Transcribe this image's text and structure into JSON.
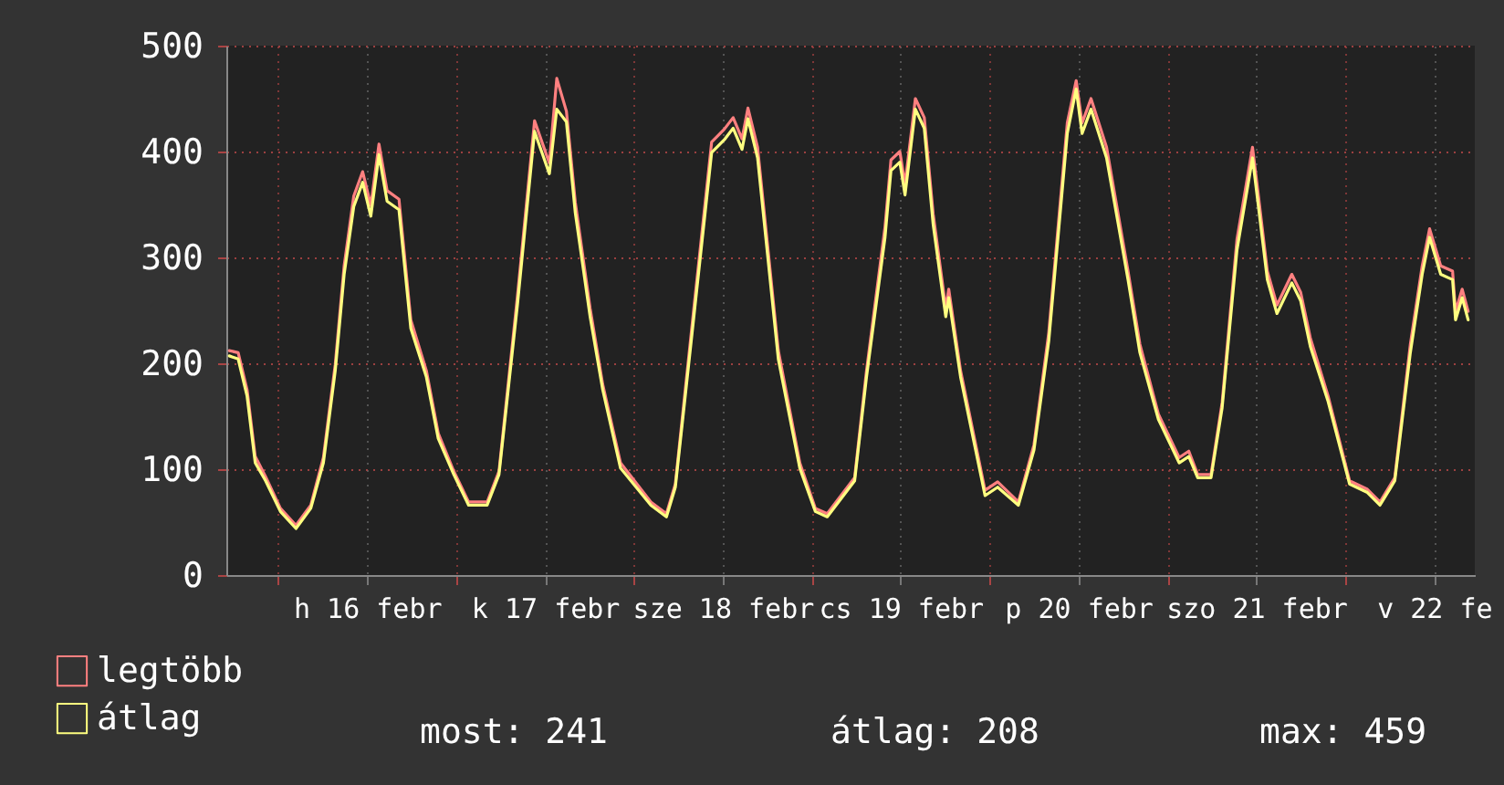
{
  "chart_data": {
    "type": "line",
    "x": [
      "--02-15T17:24",
      "--02-15T18:36",
      "--02-15T19:48",
      "--02-15T20:54",
      "--02-15T22:18",
      "--02-16T00:18",
      "--02-16T02:24",
      "--02-16T04:24",
      "--02-16T06:06",
      "--02-16T07:42",
      "--02-16T08:54",
      "--02-16T10:12",
      "--02-16T11:24",
      "--02-16T12:30",
      "--02-16T13:36",
      "--02-16T14:42",
      "--02-16T16:18",
      "--02-16T17:54",
      "--02-16T20:00",
      "--02-16T21:36",
      "--02-16T23:42",
      "--02-17T01:42",
      "--02-17T04:12",
      "--02-17T05:48",
      "--02-17T08:18",
      "--02-17T10:36",
      "--02-17T11:36",
      "--02-17T12:36",
      "--02-17T13:36",
      "--02-17T14:54",
      "--02-17T16:06",
      "--02-17T18:06",
      "--02-17T19:48",
      "--02-17T22:12",
      "--02-18T02:18",
      "--02-18T04:24",
      "--02-18T05:36",
      "--02-18T08:06",
      "--02-18T10:30",
      "--02-18T12:12",
      "--02-18T13:24",
      "--02-18T14:36",
      "--02-18T15:24",
      "--02-18T16:42",
      "--02-18T19:30",
      "--02-18T22:24",
      "--02-19T00:30",
      "--02-19T02:06",
      "--02-19T05:48",
      "--02-19T07:24",
      "--02-19T09:54",
      "--02-19T10:42",
      "--02-19T11:54",
      "--02-19T12:36",
      "--02-19T14:00",
      "--02-19T15:12",
      "--02-19T16:24",
      "--02-19T18:06",
      "--02-19T18:30",
      "--02-19T20:06",
      "--02-19T23:24",
      "--02-20T01:06",
      "--02-20T03:54",
      "--02-20T06:00",
      "--02-20T08:00",
      "--02-20T10:30",
      "--02-20T11:42",
      "--02-20T12:30",
      "--02-20T13:42",
      "--02-20T15:48",
      "--02-20T18:42",
      "--02-20T20:18",
      "--02-20T22:48",
      "--02-21T01:36",
      "--02-21T02:54",
      "--02-21T04:06",
      "--02-21T05:54",
      "--02-21T07:24",
      "--02-21T09:24",
      "--02-21T11:30",
      "--02-21T12:18",
      "--02-21T13:30",
      "--02-21T14:48",
      "--02-21T16:48",
      "--02-21T18:00",
      "--02-21T19:18",
      "--02-21T21:42",
      "--02-22T00:36",
      "--02-22T03:00",
      "--02-22T04:42",
      "--02-22T06:42",
      "--02-22T08:48",
      "--02-22T10:24",
      "--02-22T11:24",
      "--02-22T12:54",
      "--02-22T14:30",
      "--02-22T14:54",
      "--02-22T15:48",
      "--02-22T16:36"
    ],
    "series": [
      {
        "name": "legtöbb",
        "color": "#ff8080",
        "values": [
          212,
          210,
          175,
          112,
          93,
          63,
          47,
          66,
          111,
          199,
          292,
          358,
          381,
          349,
          407,
          363,
          355,
          241,
          193,
          134,
          98,
          69,
          69,
          98,
          264,
          429,
          409,
          389,
          469,
          438,
          352,
          252,
          180,
          106,
          69,
          58,
          86,
          252,
          409,
          421,
          432,
          412,
          441,
          404,
          212,
          106,
          63,
          58,
          92,
          193,
          329,
          392,
          400,
          369,
          450,
          432,
          341,
          252,
          270,
          193,
          80,
          88,
          69,
          123,
          229,
          427,
          467,
          427,
          450,
          404,
          287,
          218,
          152,
          111,
          117,
          95,
          95,
          163,
          317,
          404,
          358,
          287,
          255,
          284,
          267,
          224,
          169,
          89,
          81,
          69,
          92,
          218,
          292,
          327,
          292,
          287,
          249,
          270,
          249
        ]
      },
      {
        "name": "átlag",
        "color": "#ffff80",
        "values": [
          207,
          204,
          169,
          106,
          89,
          60,
          44,
          63,
          106,
          193,
          284,
          348,
          371,
          339,
          397,
          353,
          345,
          233,
          187,
          129,
          95,
          66,
          66,
          95,
          256,
          419,
          399,
          379,
          440,
          428,
          342,
          244,
          175,
          101,
          66,
          55,
          83,
          244,
          399,
          411,
          422,
          402,
          431,
          394,
          204,
          101,
          60,
          55,
          89,
          187,
          319,
          382,
          390,
          359,
          440,
          422,
          331,
          244,
          262,
          187,
          75,
          83,
          66,
          118,
          221,
          417,
          459,
          417,
          440,
          394,
          279,
          210,
          147,
          106,
          112,
          92,
          92,
          158,
          307,
          394,
          348,
          279,
          247,
          276,
          259,
          216,
          164,
          86,
          78,
          66,
          89,
          210,
          284,
          319,
          284,
          279,
          241,
          262,
          241
        ]
      }
    ],
    "xlim": [
      "--02-15T17:00",
      "--02-22T17:30"
    ],
    "xticks": [
      {
        "value": "--02-16T00:00",
        "label": null
      },
      {
        "value": "--02-16T12:00",
        "label": "h 16 febr"
      },
      {
        "value": "--02-17T00:00",
        "label": null
      },
      {
        "value": "--02-17T12:00",
        "label": "k 17 febr"
      },
      {
        "value": "--02-18T00:00",
        "label": null
      },
      {
        "value": "--02-18T12:00",
        "label": "sze 18 febr"
      },
      {
        "value": "--02-19T00:00",
        "label": null
      },
      {
        "value": "--02-19T12:00",
        "label": "cs 19 febr"
      },
      {
        "value": "--02-20T00:00",
        "label": null
      },
      {
        "value": "--02-20T12:00",
        "label": "p 20 febr"
      },
      {
        "value": "--02-21T00:00",
        "label": null
      },
      {
        "value": "--02-21T12:00",
        "label": "szo 21 febr"
      },
      {
        "value": "--02-22T00:00",
        "label": null
      },
      {
        "value": "--02-22T12:00",
        "label": "v 22 fe"
      }
    ],
    "ylim": [
      0,
      500
    ],
    "yticks": [
      0,
      100,
      200,
      300,
      400,
      500
    ],
    "grid": true,
    "legend": "bottom left",
    "annotations": [
      "most: 241",
      "átlag: 208",
      "max: 459"
    ]
  }
}
